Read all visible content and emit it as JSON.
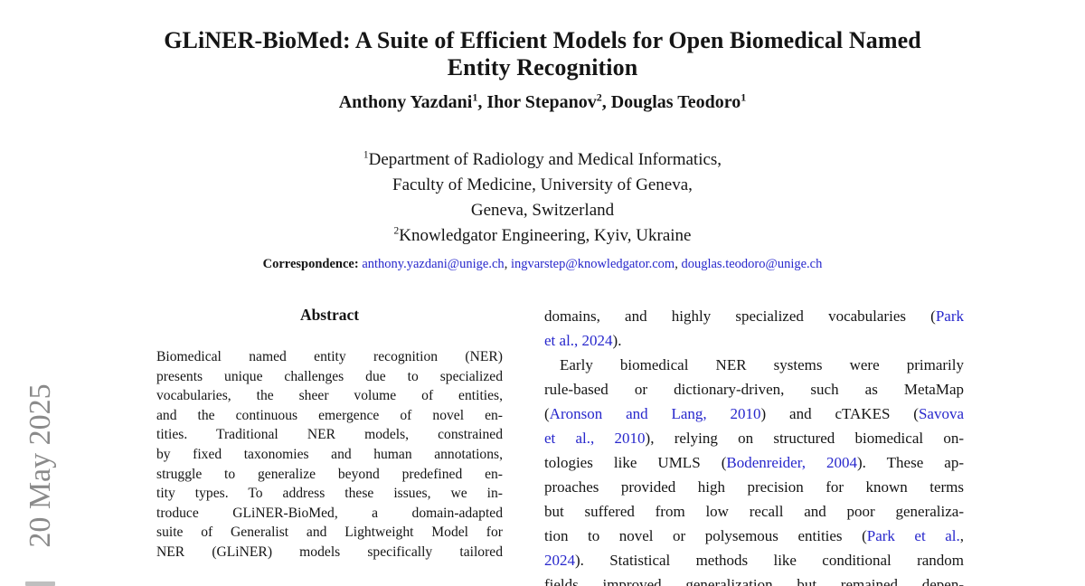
{
  "colors": {
    "link": "#2727cc",
    "text": "#151515",
    "watermark": "#8a8a8a"
  },
  "header": {
    "title_line1": "GLiNER-BioMed: A Suite of Efficient Models for Open Biomedical Named",
    "title_line2": "Entity Recognition",
    "authors": [
      {
        "name": "Anthony Yazdani",
        "sup": "1",
        "sep": ", "
      },
      {
        "name": "Ihor Stepanov",
        "sup": "2",
        "sep": ", "
      },
      {
        "name": "Douglas Teodoro",
        "sup": "1",
        "sep": ""
      }
    ],
    "affiliations": [
      {
        "sup": "1",
        "text": "Department of Radiology and Medical Informatics,"
      },
      {
        "sup": "",
        "text": "Faculty of Medicine, University of Geneva,"
      },
      {
        "sup": "",
        "text": "Geneva, Switzerland"
      },
      {
        "sup": "2",
        "text": "Knowledgator Engineering, Kyiv, Ukraine"
      }
    ],
    "correspondence": {
      "label": "Correspondence:",
      "emails": [
        "anthony.yazdani@unige.ch",
        "ingvarstep@knowledgator.com",
        "douglas.teodoro@unige.ch"
      ],
      "separator": ", "
    }
  },
  "watermark": {
    "text": "20 May 2025"
  },
  "abstract": {
    "heading": "Abstract",
    "lines": [
      {
        "seg": [
          {
            "t": "Biomedical named entity recognition (NER)"
          }
        ]
      },
      {
        "seg": [
          {
            "t": "presents unique challenges due to specialized"
          }
        ]
      },
      {
        "seg": [
          {
            "t": "vocabularies, the sheer volume of entities,"
          }
        ]
      },
      {
        "seg": [
          {
            "t": "and the continuous emergence of novel en-"
          }
        ]
      },
      {
        "seg": [
          {
            "t": "tities. Traditional NER models, constrained"
          }
        ]
      },
      {
        "seg": [
          {
            "t": "by fixed taxonomies and human annotations,"
          }
        ]
      },
      {
        "seg": [
          {
            "t": "struggle to generalize beyond predefined en-"
          }
        ]
      },
      {
        "seg": [
          {
            "t": "tity types. To address these issues, we in-"
          }
        ]
      },
      {
        "seg": [
          {
            "t": "troduce GLiNER-BioMed, a domain-adapted"
          }
        ]
      },
      {
        "seg": [
          {
            "t": "suite of Generalist and Lightweight Model for"
          }
        ]
      },
      {
        "seg": [
          {
            "t": "NER (GLiNER) models specifically tailored"
          }
        ]
      }
    ]
  },
  "right_column": {
    "lines": [
      {
        "seg": [
          {
            "t": "domains, and highly specialized vocabularies ("
          },
          {
            "t": "Park",
            "link": true
          }
        ]
      },
      {
        "last": true,
        "seg": [
          {
            "t": "et al., 2024",
            "link": true
          },
          {
            "t": ")."
          }
        ]
      },
      {
        "indent": true,
        "seg": [
          {
            "t": "Early biomedical NER systems were primarily"
          }
        ]
      },
      {
        "seg": [
          {
            "t": "rule-based or dictionary-driven, such as MetaMap"
          }
        ]
      },
      {
        "seg": [
          {
            "t": "("
          },
          {
            "t": "Aronson and Lang, 2010",
            "link": true
          },
          {
            "t": ") and cTAKES ("
          },
          {
            "t": "Savova",
            "link": true
          }
        ]
      },
      {
        "seg": [
          {
            "t": "et al., 2010",
            "link": true
          },
          {
            "t": "), relying on structured biomedical on-"
          }
        ]
      },
      {
        "seg": [
          {
            "t": "tologies like UMLS ("
          },
          {
            "t": "Bodenreider, 2004",
            "link": true
          },
          {
            "t": "). These ap-"
          }
        ]
      },
      {
        "seg": [
          {
            "t": "proaches provided high precision for known terms"
          }
        ]
      },
      {
        "seg": [
          {
            "t": "but suffered from low recall and poor generaliza-"
          }
        ]
      },
      {
        "seg": [
          {
            "t": "tion to novel or polysemous entities ("
          },
          {
            "t": "Park et al.",
            "link": true
          },
          {
            "t": ","
          }
        ]
      },
      {
        "seg": [
          {
            "t": "2024",
            "link": true
          },
          {
            "t": "). Statistical methods like conditional random"
          }
        ]
      },
      {
        "seg": [
          {
            "t": "fields improved generalization but remained depen-"
          }
        ]
      }
    ]
  }
}
